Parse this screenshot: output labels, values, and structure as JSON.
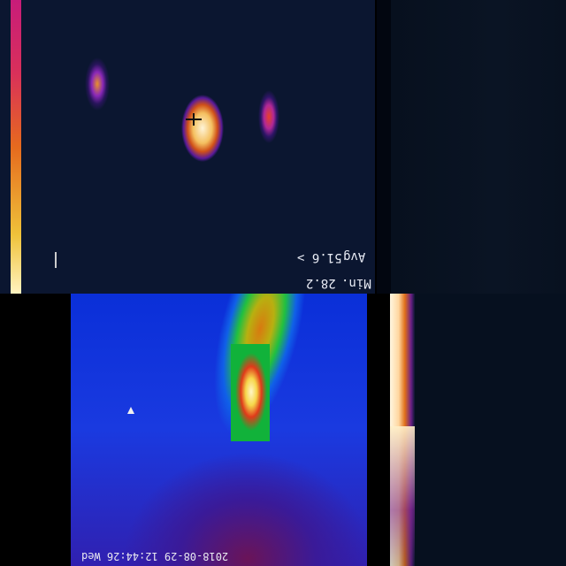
{
  "thermal_top_left": {
    "readout_min_label": "Min.",
    "readout_min_value": "28.2",
    "readout_avg_label": "Avg",
    "readout_avg_value": "51.6 >",
    "colors": {
      "scale_top": "#c81c7a",
      "scale_bottom": "#fff3c0",
      "background": "#0b1630"
    }
  },
  "thermal_bottom_left": {
    "timestamp": "2018-08-29 12:44:26 Wed",
    "colors": {
      "background": "#0a2fd8",
      "roi_fill": "#11b23a",
      "hotspot": "#fff6c8"
    }
  },
  "thermal_bottom_right": {
    "colors": {
      "edge": "#fff6e0",
      "background": "#06101f"
    }
  }
}
